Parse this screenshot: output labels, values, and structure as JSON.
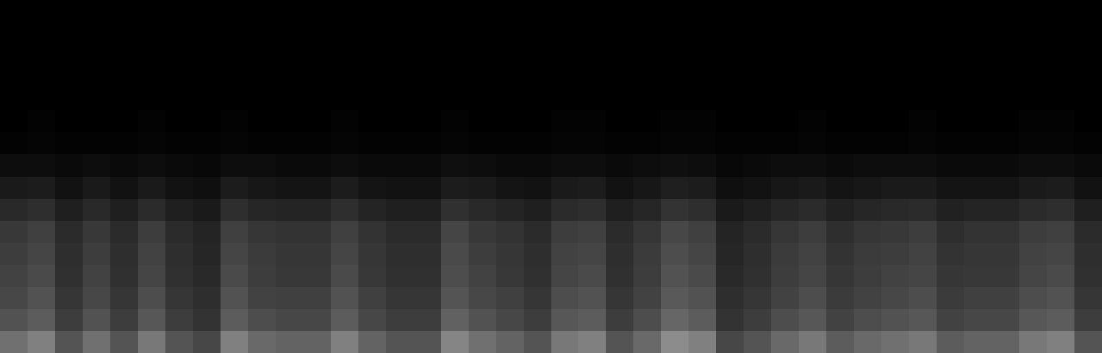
{
  "chart_data": {
    "type": "heatmap",
    "tick_labels": false,
    "grid": false,
    "colors": [
      "#000000",
      "#ffffff"
    ],
    "zlim": [
      0,
      1
    ],
    "cells": [
      [
        0.44,
        0.5,
        0.33,
        0.44,
        0.33,
        0.47,
        0.33,
        0.28,
        0.5,
        0.41,
        0.39,
        0.39,
        0.5,
        0.39,
        0.33,
        0.33,
        0.52,
        0.44,
        0.39,
        0.33,
        0.47,
        0.5,
        0.33,
        0.41,
        0.55,
        0.5,
        0.28,
        0.33,
        0.41,
        0.47,
        0.36,
        0.41,
        0.44,
        0.47,
        0.36,
        0.39,
        0.39,
        0.47,
        0.5,
        0.33
      ],
      [
        0.32,
        0.36,
        0.24,
        0.32,
        0.24,
        0.34,
        0.24,
        0.2,
        0.36,
        0.3,
        0.28,
        0.28,
        0.36,
        0.28,
        0.24,
        0.24,
        0.38,
        0.32,
        0.28,
        0.24,
        0.34,
        0.36,
        0.24,
        0.3,
        0.4,
        0.36,
        0.2,
        0.24,
        0.3,
        0.34,
        0.26,
        0.3,
        0.32,
        0.34,
        0.26,
        0.28,
        0.28,
        0.34,
        0.36,
        0.24
      ],
      [
        0.28,
        0.32,
        0.21,
        0.28,
        0.21,
        0.3,
        0.21,
        0.18,
        0.32,
        0.26,
        0.25,
        0.25,
        0.32,
        0.25,
        0.21,
        0.21,
        0.33,
        0.28,
        0.25,
        0.21,
        0.3,
        0.32,
        0.21,
        0.26,
        0.35,
        0.32,
        0.18,
        0.21,
        0.26,
        0.3,
        0.23,
        0.26,
        0.28,
        0.3,
        0.23,
        0.25,
        0.25,
        0.3,
        0.32,
        0.21
      ],
      [
        0.26,
        0.29,
        0.19,
        0.26,
        0.19,
        0.27,
        0.19,
        0.16,
        0.29,
        0.24,
        0.22,
        0.22,
        0.29,
        0.22,
        0.19,
        0.19,
        0.3,
        0.26,
        0.22,
        0.19,
        0.27,
        0.29,
        0.19,
        0.24,
        0.32,
        0.29,
        0.16,
        0.19,
        0.24,
        0.27,
        0.21,
        0.24,
        0.26,
        0.27,
        0.21,
        0.22,
        0.22,
        0.27,
        0.29,
        0.19
      ],
      [
        0.24,
        0.27,
        0.18,
        0.24,
        0.18,
        0.26,
        0.18,
        0.15,
        0.27,
        0.23,
        0.21,
        0.21,
        0.27,
        0.21,
        0.18,
        0.18,
        0.29,
        0.24,
        0.21,
        0.18,
        0.26,
        0.27,
        0.18,
        0.23,
        0.3,
        0.27,
        0.15,
        0.18,
        0.23,
        0.26,
        0.2,
        0.23,
        0.24,
        0.26,
        0.2,
        0.21,
        0.21,
        0.26,
        0.27,
        0.18
      ],
      [
        0.22,
        0.25,
        0.17,
        0.22,
        0.17,
        0.24,
        0.17,
        0.14,
        0.25,
        0.21,
        0.2,
        0.2,
        0.25,
        0.2,
        0.17,
        0.17,
        0.27,
        0.22,
        0.2,
        0.17,
        0.24,
        0.25,
        0.17,
        0.21,
        0.28,
        0.25,
        0.14,
        0.17,
        0.21,
        0.24,
        0.18,
        0.21,
        0.22,
        0.24,
        0.18,
        0.2,
        0.2,
        0.24,
        0.25,
        0.17
      ],
      [
        0.16,
        0.18,
        0.12,
        0.16,
        0.12,
        0.17,
        0.12,
        0.1,
        0.18,
        0.15,
        0.14,
        0.14,
        0.18,
        0.14,
        0.12,
        0.12,
        0.19,
        0.16,
        0.14,
        0.12,
        0.17,
        0.18,
        0.12,
        0.15,
        0.2,
        0.18,
        0.1,
        0.12,
        0.15,
        0.17,
        0.13,
        0.15,
        0.16,
        0.17,
        0.13,
        0.14,
        0.14,
        0.17,
        0.18,
        0.12
      ],
      [
        0.1,
        0.11,
        0.07,
        0.1,
        0.07,
        0.1,
        0.07,
        0.06,
        0.11,
        0.09,
        0.08,
        0.08,
        0.11,
        0.08,
        0.07,
        0.07,
        0.11,
        0.1,
        0.08,
        0.07,
        0.1,
        0.11,
        0.07,
        0.09,
        0.12,
        0.11,
        0.06,
        0.07,
        0.09,
        0.1,
        0.08,
        0.09,
        0.1,
        0.1,
        0.08,
        0.08,
        0.08,
        0.1,
        0.11,
        0.07
      ],
      [
        0.05,
        0.05,
        0.04,
        0.05,
        0.04,
        0.05,
        0.04,
        0.03,
        0.05,
        0.05,
        0.04,
        0.04,
        0.05,
        0.04,
        0.04,
        0.04,
        0.06,
        0.05,
        0.04,
        0.04,
        0.05,
        0.05,
        0.04,
        0.05,
        0.06,
        0.05,
        0.03,
        0.04,
        0.05,
        0.05,
        0.04,
        0.05,
        0.05,
        0.05,
        0.04,
        0.04,
        0.04,
        0.05,
        0.05,
        0.04
      ],
      [
        0.01,
        0.02,
        0.01,
        0.01,
        0.01,
        0.02,
        0.01,
        0.01,
        0.02,
        0.01,
        0.01,
        0.01,
        0.02,
        0.01,
        0.01,
        0.01,
        0.02,
        0.01,
        0.01,
        0.01,
        0.02,
        0.02,
        0.01,
        0.01,
        0.02,
        0.02,
        0.01,
        0.01,
        0.01,
        0.02,
        0.01,
        0.01,
        0.01,
        0.02,
        0.01,
        0.01,
        0.01,
        0.02,
        0.02,
        0.01
      ],
      [
        0,
        0.01,
        0,
        0,
        0,
        0.01,
        0,
        0,
        0.01,
        0,
        0,
        0,
        0.01,
        0,
        0,
        0,
        0.01,
        0,
        0,
        0,
        0.01,
        0.01,
        0,
        0,
        0.01,
        0.01,
        0,
        0,
        0,
        0.01,
        0,
        0,
        0,
        0.01,
        0,
        0,
        0,
        0.01,
        0.01,
        0
      ],
      [
        0,
        0,
        0,
        0,
        0,
        0,
        0,
        0,
        0,
        0,
        0,
        0,
        0,
        0,
        0,
        0,
        0,
        0,
        0,
        0,
        0,
        0,
        0,
        0,
        0,
        0,
        0,
        0,
        0,
        0,
        0,
        0,
        0,
        0,
        0,
        0,
        0,
        0,
        0,
        0
      ],
      [
        0,
        0,
        0,
        0,
        0,
        0,
        0,
        0,
        0,
        0,
        0,
        0,
        0,
        0,
        0,
        0,
        0,
        0,
        0,
        0,
        0,
        0,
        0,
        0,
        0,
        0,
        0,
        0,
        0,
        0,
        0,
        0,
        0,
        0,
        0,
        0,
        0,
        0,
        0,
        0
      ],
      [
        0,
        0,
        0,
        0,
        0,
        0,
        0,
        0,
        0,
        0,
        0,
        0,
        0,
        0,
        0,
        0,
        0,
        0,
        0,
        0,
        0,
        0,
        0,
        0,
        0,
        0,
        0,
        0,
        0,
        0,
        0,
        0,
        0,
        0,
        0,
        0,
        0,
        0,
        0,
        0
      ],
      [
        0,
        0,
        0,
        0,
        0,
        0,
        0,
        0,
        0,
        0,
        0,
        0,
        0,
        0,
        0,
        0,
        0,
        0,
        0,
        0,
        0,
        0,
        0,
        0,
        0,
        0,
        0,
        0,
        0,
        0,
        0,
        0,
        0,
        0,
        0,
        0,
        0,
        0,
        0,
        0
      ],
      [
        0,
        0,
        0,
        0,
        0,
        0,
        0,
        0,
        0,
        0,
        0,
        0,
        0,
        0,
        0,
        0,
        0,
        0,
        0,
        0,
        0,
        0,
        0,
        0,
        0,
        0,
        0,
        0,
        0,
        0,
        0,
        0,
        0,
        0,
        0,
        0,
        0,
        0,
        0,
        0
      ]
    ]
  }
}
